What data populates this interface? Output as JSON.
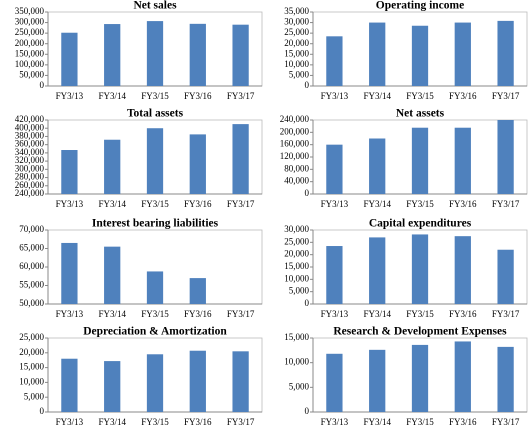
{
  "chart_data": [
    {
      "type": "bar",
      "title": "Net sales",
      "color": "#4f81bd",
      "categories": [
        "FY3/13",
        "FY3/14",
        "FY3/15",
        "FY3/16",
        "FY3/17"
      ],
      "values": [
        252000,
        293000,
        307000,
        294000,
        290000
      ],
      "ylim": [
        0,
        350000
      ],
      "yticks": [
        0,
        {
          "value": 50000,
          "label": "50,000"
        },
        {
          "value": 100000,
          "label": "100,000"
        },
        {
          "value": 150000,
          "label": "150,000"
        },
        {
          "value": 200000,
          "label": "200,000"
        },
        {
          "value": 250000,
          "label": "250,000"
        },
        {
          "value": 300000,
          "label": "300,000"
        },
        {
          "value": 350000,
          "label": "350,000"
        }
      ]
    },
    {
      "type": "bar",
      "title": "Operating income",
      "color": "#4f81bd",
      "categories": [
        "FY3/13",
        "FY3/14",
        "FY3/15",
        "FY3/16",
        "FY3/17"
      ],
      "values": [
        23500,
        30000,
        28500,
        30000,
        30800
      ],
      "ylim": [
        0,
        35000
      ],
      "yticks": [
        0,
        {
          "value": 5000,
          "label": "5,000"
        },
        {
          "value": 10000,
          "label": "10,000"
        },
        {
          "value": 15000,
          "label": "15,000"
        },
        {
          "value": 20000,
          "label": "20,000"
        },
        {
          "value": 25000,
          "label": "25,000"
        },
        {
          "value": 30000,
          "label": "30,000"
        },
        {
          "value": 35000,
          "label": "35,000"
        }
      ]
    },
    {
      "type": "bar",
      "title": "Total assets",
      "color": "#4f81bd",
      "categories": [
        "FY3/13",
        "FY3/14",
        "FY3/15",
        "FY3/16",
        "FY3/17"
      ],
      "values": [
        347000,
        372000,
        400000,
        385000,
        410000
      ],
      "ylim": [
        240000,
        420000
      ],
      "yticks": [
        {
          "value": 240000,
          "label": "240,000"
        },
        {
          "value": 260000,
          "label": "260,000"
        },
        {
          "value": 280000,
          "label": "280,000"
        },
        {
          "value": 300000,
          "label": "300,000"
        },
        {
          "value": 320000,
          "label": "320,000"
        },
        {
          "value": 340000,
          "label": "340,000"
        },
        {
          "value": 360000,
          "label": "360,000"
        },
        {
          "value": 380000,
          "label": "380,000"
        },
        {
          "value": 400000,
          "label": "400,000"
        },
        {
          "value": 420000,
          "label": "420,000"
        }
      ]
    },
    {
      "type": "bar",
      "title": "Net assets",
      "color": "#4f81bd",
      "categories": [
        "FY3/13",
        "FY3/14",
        "FY3/15",
        "FY3/16",
        "FY3/17"
      ],
      "values": [
        160000,
        180000,
        215000,
        215000,
        240000
      ],
      "ylim": [
        0,
        240000
      ],
      "yticks": [
        0,
        {
          "value": 40000,
          "label": "40,000"
        },
        {
          "value": 80000,
          "label": "80,000"
        },
        {
          "value": 120000,
          "label": "120,000"
        },
        {
          "value": 160000,
          "label": "160,000"
        },
        {
          "value": 200000,
          "label": "200,000"
        },
        {
          "value": 240000,
          "label": "240,000"
        }
      ]
    },
    {
      "type": "bar",
      "title": "Interest bearing liabilities",
      "color": "#4f81bd",
      "categories": [
        "FY3/13",
        "FY3/14",
        "FY3/15",
        "FY3/16",
        "FY3/17"
      ],
      "values": [
        66500,
        65500,
        58800,
        57000,
        50000
      ],
      "ylim": [
        50000,
        70000
      ],
      "yticks": [
        {
          "value": 50000,
          "label": "50,000"
        },
        {
          "value": 55000,
          "label": "55,000"
        },
        {
          "value": 60000,
          "label": "60,000"
        },
        {
          "value": 65000,
          "label": "65,000"
        },
        {
          "value": 70000,
          "label": "70,000"
        }
      ]
    },
    {
      "type": "bar",
      "title": "Capital expenditures",
      "color": "#4f81bd",
      "categories": [
        "FY3/13",
        "FY3/14",
        "FY3/15",
        "FY3/16",
        "FY3/17"
      ],
      "values": [
        23500,
        27000,
        28200,
        27500,
        22000
      ],
      "ylim": [
        0,
        30000
      ],
      "yticks": [
        0,
        {
          "value": 5000,
          "label": "5,000"
        },
        {
          "value": 10000,
          "label": "10,000"
        },
        {
          "value": 15000,
          "label": "15,000"
        },
        {
          "value": 20000,
          "label": "20,000"
        },
        {
          "value": 25000,
          "label": "25,000"
        },
        {
          "value": 30000,
          "label": "30,000"
        }
      ]
    },
    {
      "type": "bar",
      "title": "Depreciation & Amortization",
      "color": "#4f81bd",
      "categories": [
        "FY3/13",
        "FY3/14",
        "FY3/15",
        "FY3/16",
        "FY3/17"
      ],
      "values": [
        18000,
        17200,
        19500,
        20700,
        20500
      ],
      "ylim": [
        0,
        25000
      ],
      "yticks": [
        0,
        {
          "value": 5000,
          "label": "5,000"
        },
        {
          "value": 10000,
          "label": "10,000"
        },
        {
          "value": 15000,
          "label": "15,000"
        },
        {
          "value": 20000,
          "label": "20,000"
        },
        {
          "value": 25000,
          "label": "25,000"
        }
      ]
    },
    {
      "type": "bar",
      "title": "Research & Development Expenses",
      "color": "#4f81bd",
      "categories": [
        "FY3/13",
        "FY3/14",
        "FY3/15",
        "FY3/16",
        "FY3/17"
      ],
      "values": [
        11800,
        12600,
        13600,
        14300,
        13200
      ],
      "ylim": [
        0,
        15000
      ],
      "yticks": [
        0,
        {
          "value": 5000,
          "label": "5,000"
        },
        {
          "value": 10000,
          "label": "10,000"
        },
        {
          "value": 15000,
          "label": "15,000"
        }
      ]
    }
  ]
}
